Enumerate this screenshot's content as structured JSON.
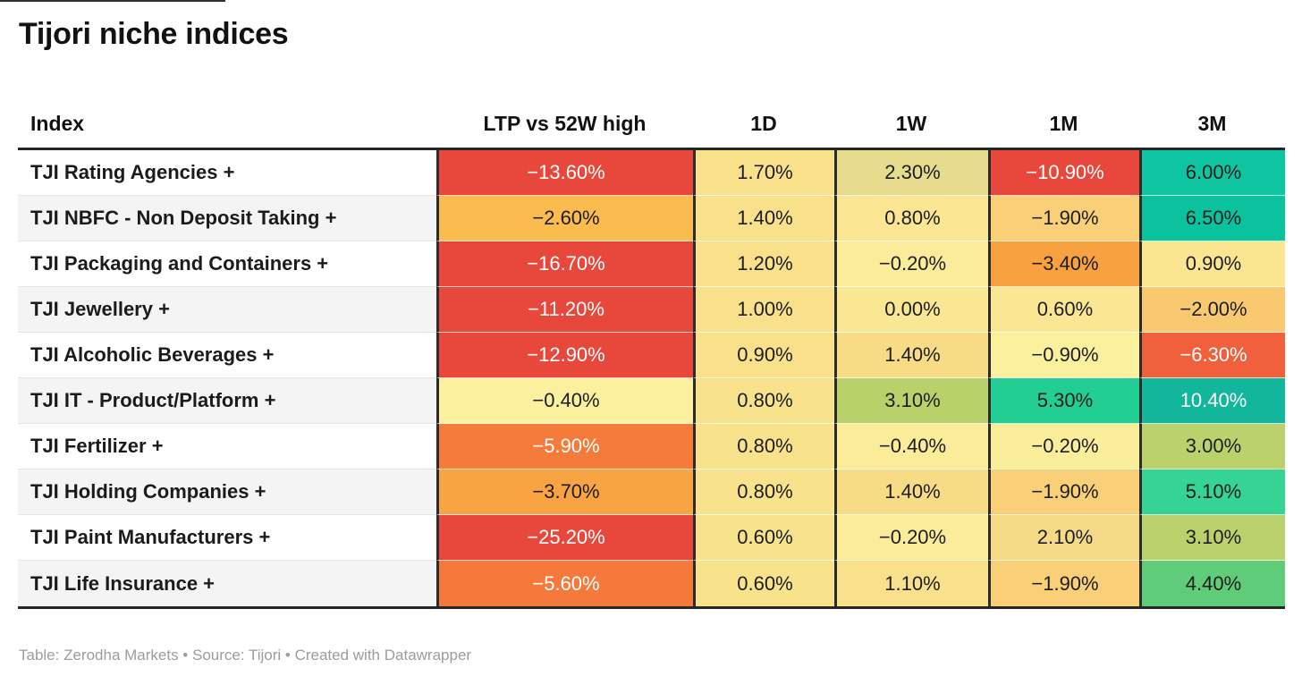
{
  "header": {
    "title": "Tijori niche indices"
  },
  "footer": {
    "credit": "Table: Zerodha Markets • Source: Tijori • Created with Datawrapper"
  },
  "chart_data": {
    "type": "table",
    "title": "Tijori niche indices",
    "columns": [
      "Index",
      "LTP vs 52W high",
      "1D",
      "1W",
      "1M",
      "3M"
    ],
    "palette_note": "red=strong negative, orange/amber=mild negative, yellow=flat, green/teal=positive",
    "rows": [
      {
        "name": "TJI Rating Agencies +",
        "values": [
          -13.6,
          1.7,
          2.3,
          -10.9,
          6.0
        ],
        "cells": [
          {
            "v": "−13.60%",
            "bg": "#e8483b",
            "fg": "#ffffff"
          },
          {
            "v": "1.70%",
            "bg": "#f9e18b"
          },
          {
            "v": "2.30%",
            "bg": "#e7dc8e"
          },
          {
            "v": "−10.90%",
            "bg": "#e8483b",
            "fg": "#ffffff"
          },
          {
            "v": "6.00%",
            "bg": "#0fc5a1"
          }
        ]
      },
      {
        "name": "TJI NBFC - Non Deposit Taking +",
        "values": [
          -2.6,
          1.4,
          0.8,
          -1.9,
          6.5
        ],
        "cells": [
          {
            "v": "−2.60%",
            "bg": "#fbbc4f"
          },
          {
            "v": "1.40%",
            "bg": "#f9e18b"
          },
          {
            "v": "0.80%",
            "bg": "#fae693"
          },
          {
            "v": "−1.90%",
            "bg": "#f9cf78"
          },
          {
            "v": "6.50%",
            "bg": "#0ac29e"
          }
        ]
      },
      {
        "name": "TJI Packaging and Containers +",
        "values": [
          -16.7,
          1.2,
          -0.2,
          -3.4,
          0.9
        ],
        "cells": [
          {
            "v": "−16.70%",
            "bg": "#e8483b",
            "fg": "#ffffff"
          },
          {
            "v": "1.20%",
            "bg": "#f9e18b"
          },
          {
            "v": "−0.20%",
            "bg": "#faec98"
          },
          {
            "v": "−3.40%",
            "bg": "#f8a140"
          },
          {
            "v": "0.90%",
            "bg": "#fae590"
          }
        ]
      },
      {
        "name": "TJI Jewellery +",
        "values": [
          -11.2,
          1.0,
          0.0,
          0.6,
          -2.0
        ],
        "cells": [
          {
            "v": "−11.20%",
            "bg": "#e8483b",
            "fg": "#ffffff"
          },
          {
            "v": "1.00%",
            "bg": "#f9e18b"
          },
          {
            "v": "0.00%",
            "bg": "#fae794"
          },
          {
            "v": "0.60%",
            "bg": "#fae693"
          },
          {
            "v": "−2.00%",
            "bg": "#f8c96f"
          }
        ]
      },
      {
        "name": "TJI Alcoholic Beverages +",
        "values": [
          -12.9,
          0.9,
          1.4,
          -0.9,
          -6.3
        ],
        "cells": [
          {
            "v": "−12.90%",
            "bg": "#e8483b",
            "fg": "#ffffff"
          },
          {
            "v": "0.90%",
            "bg": "#f9e18b"
          },
          {
            "v": "1.40%",
            "bg": "#f8dc85"
          },
          {
            "v": "−0.90%",
            "bg": "#faf09e"
          },
          {
            "v": "−6.30%",
            "bg": "#f1603c",
            "fg": "#ffffff"
          }
        ]
      },
      {
        "name": "TJI IT - Product/Platform +",
        "values": [
          -0.4,
          0.8,
          3.1,
          5.3,
          10.4
        ],
        "cells": [
          {
            "v": "−0.40%",
            "bg": "#faf09e"
          },
          {
            "v": "0.80%",
            "bg": "#f9e28c"
          },
          {
            "v": "3.10%",
            "bg": "#b9d169"
          },
          {
            "v": "5.30%",
            "bg": "#22ce93"
          },
          {
            "v": "10.40%",
            "bg": "#12b69b",
            "fg": "#ffffff"
          }
        ]
      },
      {
        "name": "TJI Fertilizer +",
        "values": [
          -5.9,
          0.8,
          -0.4,
          -0.2,
          3.0
        ],
        "cells": [
          {
            "v": "−5.90%",
            "bg": "#f47b39",
            "fg": "#ffffff"
          },
          {
            "v": "0.80%",
            "bg": "#f9e28c"
          },
          {
            "v": "−0.40%",
            "bg": "#faec98"
          },
          {
            "v": "−0.20%",
            "bg": "#faee9b"
          },
          {
            "v": "3.00%",
            "bg": "#bbd26c"
          }
        ]
      },
      {
        "name": "TJI Holding Companies +",
        "values": [
          -3.7,
          0.8,
          1.4,
          -1.9,
          5.1
        ],
        "cells": [
          {
            "v": "−3.70%",
            "bg": "#f9a443"
          },
          {
            "v": "0.80%",
            "bg": "#f9e28c"
          },
          {
            "v": "1.40%",
            "bg": "#f8dc85"
          },
          {
            "v": "−1.90%",
            "bg": "#f9cf78"
          },
          {
            "v": "5.10%",
            "bg": "#35d494"
          }
        ]
      },
      {
        "name": "TJI Paint Manufacturers +",
        "values": [
          -25.2,
          0.6,
          -0.2,
          2.1,
          3.1
        ],
        "cells": [
          {
            "v": "−25.20%",
            "bg": "#e8483b",
            "fg": "#ffffff"
          },
          {
            "v": "0.60%",
            "bg": "#f9e28c"
          },
          {
            "v": "−0.20%",
            "bg": "#faec98"
          },
          {
            "v": "2.10%",
            "bg": "#f4da87"
          },
          {
            "v": "3.10%",
            "bg": "#bbd26c"
          }
        ]
      },
      {
        "name": "TJI Life Insurance +",
        "values": [
          -5.6,
          0.6,
          1.1,
          -1.9,
          4.4
        ],
        "cells": [
          {
            "v": "−5.60%",
            "bg": "#f4793a",
            "fg": "#ffffff"
          },
          {
            "v": "0.60%",
            "bg": "#f9e28c"
          },
          {
            "v": "1.10%",
            "bg": "#f9e18b"
          },
          {
            "v": "−1.90%",
            "bg": "#f9cf78"
          },
          {
            "v": "4.40%",
            "bg": "#5ecc79"
          }
        ]
      }
    ]
  }
}
